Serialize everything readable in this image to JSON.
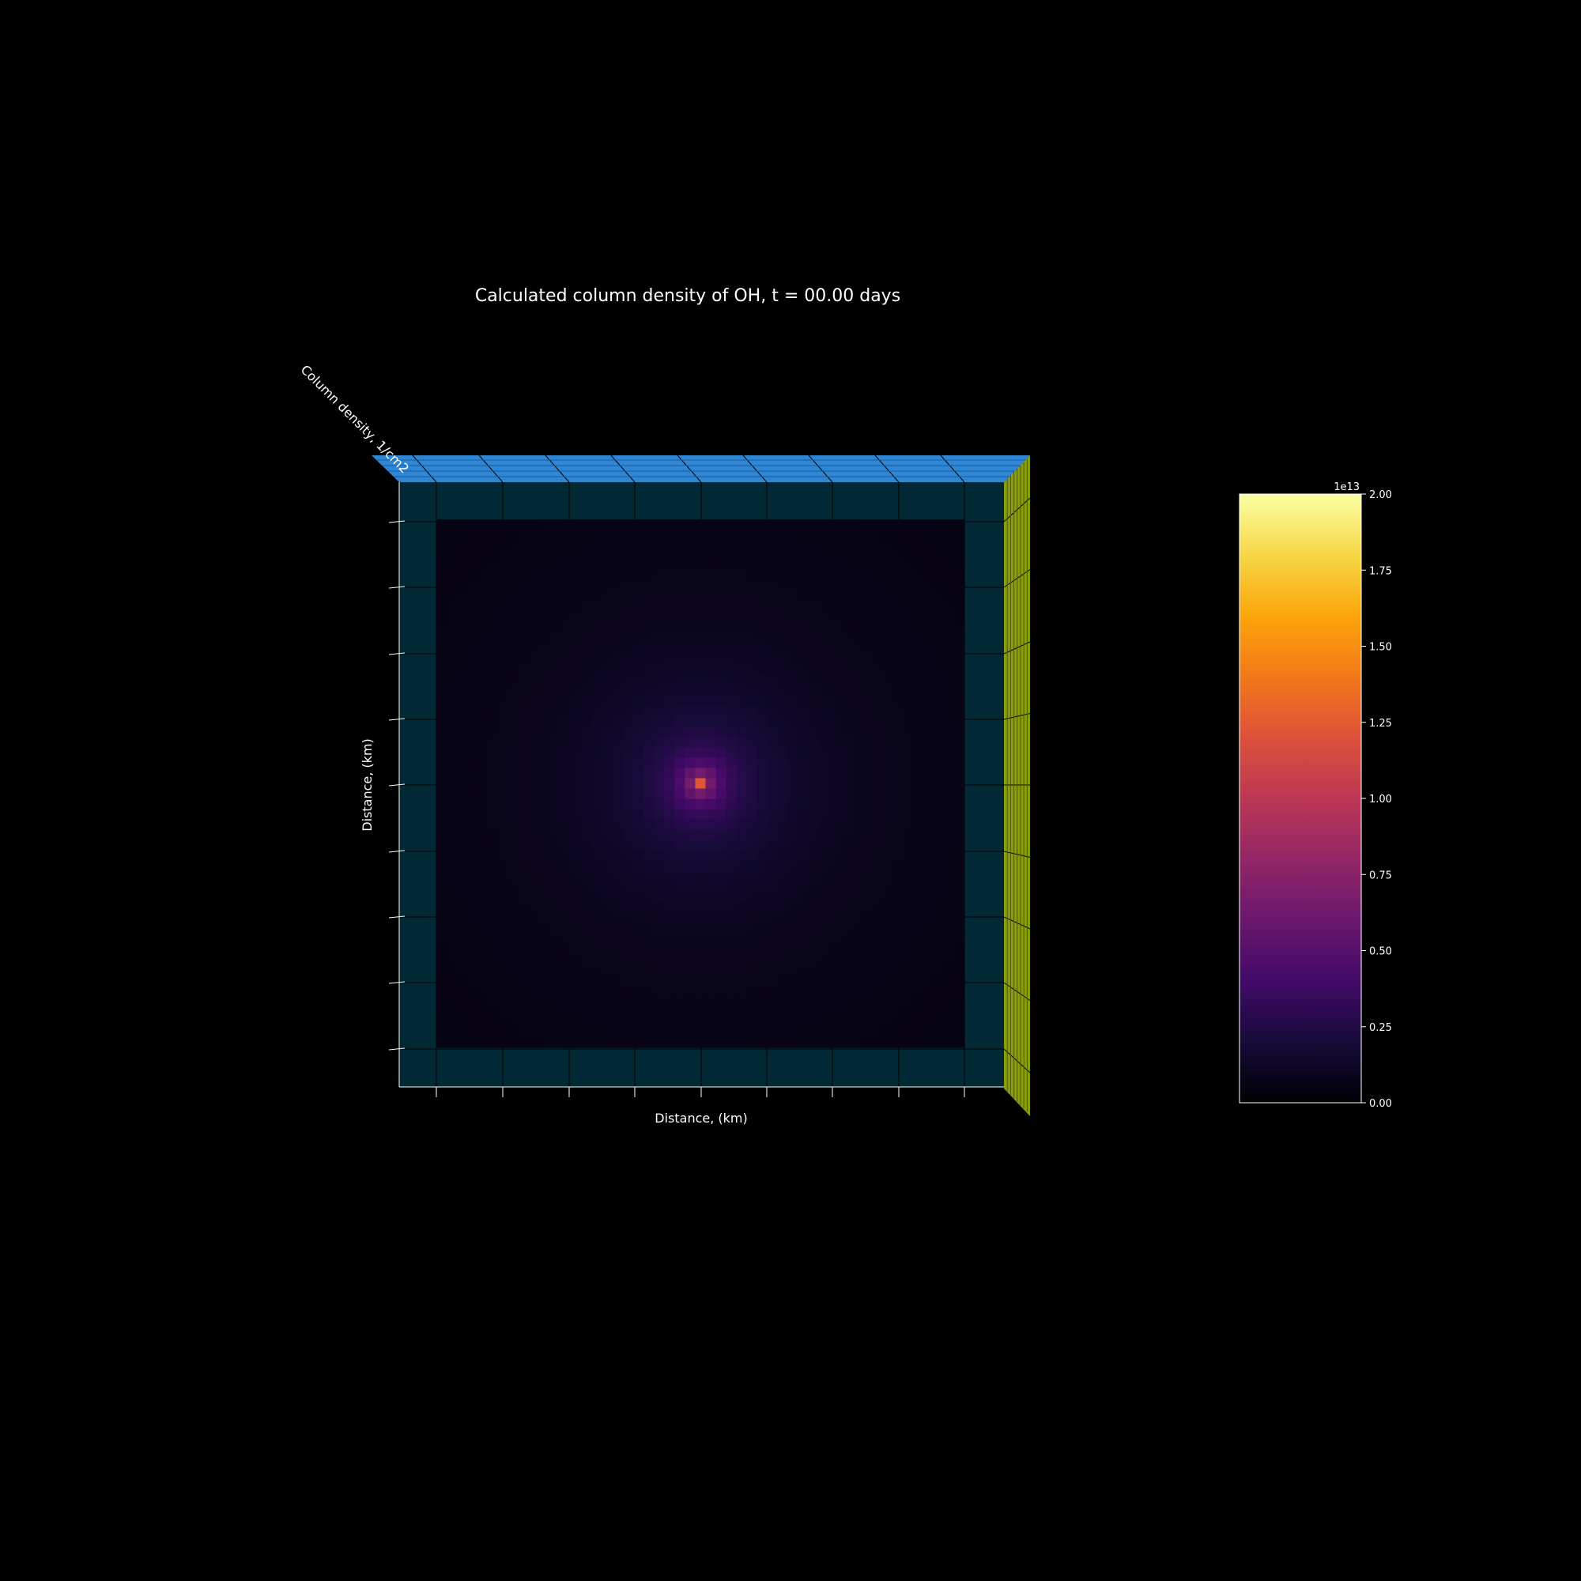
{
  "chart_data": {
    "type": "heatmap",
    "title": "Calculated column density of OH, t = 00.00 days",
    "xlabel": "Distance, (km)",
    "ylabel": "Distance, (km)",
    "zlabel": "Column density, 1/cm2",
    "grid": 51,
    "peak_value": 12000000000000.0,
    "peak_location": "center",
    "colormap": "inferno",
    "colorbar": {
      "min": 0.0,
      "max": 2.0,
      "multiplier_label": "1e13",
      "ticks": [
        "0.00",
        "0.25",
        "0.50",
        "0.75",
        "1.00",
        "1.25",
        "1.50",
        "1.75",
        "2.00"
      ],
      "orientation": "vertical",
      "placement": "right"
    },
    "colors": {
      "background": "#000000",
      "pane_back": "#022a36",
      "pane_top": "#2e86d6",
      "pane_side": "#8a9e0c",
      "axis_text": "#ffffff"
    }
  }
}
